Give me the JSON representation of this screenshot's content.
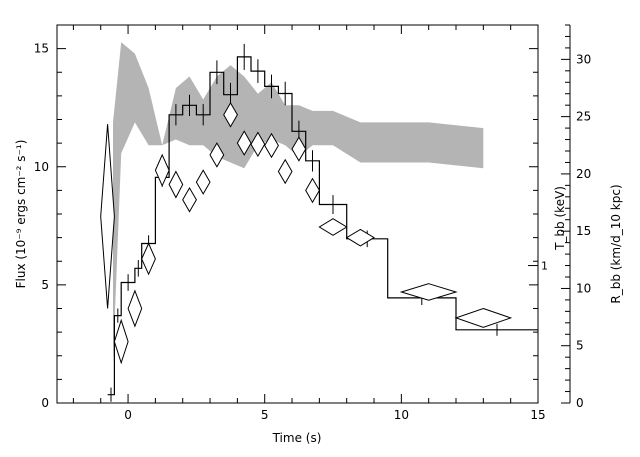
{
  "chart_data": {
    "type": "line",
    "xlabel": "Time (s)",
    "ylabel": "Flux (10⁻⁹ ergs cm⁻² s⁻¹)",
    "y2label_T": "T_bb (keV)",
    "y2label_R": "R_bb (km/d_10 kpc)",
    "y2_marker_label": "1",
    "xlim": [
      -2.6,
      15
    ],
    "ylim": [
      0,
      16
    ],
    "y2lim": [
      0,
      33
    ],
    "x_ticks": [
      0,
      5,
      10,
      15
    ],
    "x_tick_labels": [
      "0",
      "5",
      "10",
      "15"
    ],
    "y_ticks": [
      0,
      5,
      10,
      15
    ],
    "y_tick_labels": [
      "0",
      "5",
      "10",
      "15"
    ],
    "y2_ticks": [
      0,
      5,
      10,
      15,
      20,
      25,
      30
    ],
    "y2_tick_labels": [
      "0",
      "5",
      "10",
      "15",
      "20",
      "25",
      "30"
    ],
    "y2_marker_value": 12,
    "flux_histogram": {
      "edges": [
        -0.75,
        -0.5,
        -0.25,
        0.25,
        0.5,
        1.0,
        1.5,
        2.0,
        2.5,
        3.0,
        3.5,
        4.0,
        4.5,
        5.0,
        5.5,
        6.0,
        6.5,
        7.0,
        8.0,
        9.5,
        12.0,
        15.0
      ],
      "values": [
        0.35,
        3.7,
        5.1,
        5.7,
        6.75,
        9.55,
        12.2,
        12.6,
        12.2,
        14.0,
        13.05,
        14.65,
        14.05,
        13.4,
        13.1,
        11.5,
        10.25,
        8.4,
        6.95,
        4.45,
        3.1
      ],
      "errors": [
        0.3,
        0.3,
        0.35,
        0.35,
        0.35,
        0.4,
        0.45,
        0.45,
        0.45,
        0.5,
        0.5,
        0.55,
        0.5,
        0.5,
        0.5,
        0.45,
        0.45,
        0.4,
        0.35,
        0.3,
        0.25
      ]
    },
    "temperature_points": [
      {
        "t": -0.75,
        "kT": 7.9,
        "dt": 0.25,
        "dkT": 3.9
      },
      {
        "t": -0.25,
        "kT": 2.6,
        "dt": 0.25,
        "dkT": 0.9
      },
      {
        "t": 0.25,
        "kT": 4.0,
        "dt": 0.25,
        "dkT": 0.75
      },
      {
        "t": 0.75,
        "kT": 6.1,
        "dt": 0.25,
        "dkT": 0.65
      },
      {
        "t": 1.25,
        "kT": 9.85,
        "dt": 0.25,
        "dkT": 0.65
      },
      {
        "t": 1.75,
        "kT": 9.25,
        "dt": 0.25,
        "dkT": 0.55
      },
      {
        "t": 2.25,
        "kT": 8.6,
        "dt": 0.25,
        "dkT": 0.5
      },
      {
        "t": 2.75,
        "kT": 9.35,
        "dt": 0.25,
        "dkT": 0.5
      },
      {
        "t": 3.25,
        "kT": 10.5,
        "dt": 0.25,
        "dkT": 0.5
      },
      {
        "t": 3.75,
        "kT": 12.2,
        "dt": 0.25,
        "dkT": 0.5
      },
      {
        "t": 4.25,
        "kT": 11.0,
        "dt": 0.25,
        "dkT": 0.5
      },
      {
        "t": 4.75,
        "kT": 10.95,
        "dt": 0.25,
        "dkT": 0.5
      },
      {
        "t": 5.25,
        "kT": 10.9,
        "dt": 0.25,
        "dkT": 0.5
      },
      {
        "t": 5.75,
        "kT": 9.8,
        "dt": 0.25,
        "dkT": 0.5
      },
      {
        "t": 6.25,
        "kT": 10.75,
        "dt": 0.25,
        "dkT": 0.5
      },
      {
        "t": 6.75,
        "kT": 9.0,
        "dt": 0.25,
        "dkT": 0.5
      },
      {
        "t": 7.5,
        "kT": 7.45,
        "dt": 0.5,
        "dkT": 0.35
      },
      {
        "t": 8.5,
        "kT": 7.0,
        "dt": 0.5,
        "dkT": 0.35
      },
      {
        "t": 11.0,
        "kT": 4.7,
        "dt": 1.0,
        "dkT": 0.35
      },
      {
        "t": 13.0,
        "kT": 3.6,
        "dt": 1.0,
        "dkT": 0.4
      }
    ],
    "radius_band": {
      "t": [
        -0.55,
        -0.25,
        0.25,
        0.75,
        1.25,
        1.75,
        2.25,
        2.75,
        3.25,
        3.75,
        4.25,
        4.75,
        5.25,
        5.75,
        6.25,
        6.75,
        7.5,
        8.5,
        11.0,
        13.0
      ],
      "low": [
        3.5,
        21.8,
        24.5,
        22.5,
        22.5,
        23.0,
        22.5,
        22.5,
        21.5,
        21.0,
        20.5,
        22.5,
        23.0,
        22.5,
        21.5,
        22.5,
        22.5,
        21.0,
        21.0,
        20.5
      ],
      "high": [
        24.5,
        31.5,
        30.5,
        27.5,
        22.5,
        27.5,
        28.5,
        26.5,
        28.5,
        29.5,
        28.5,
        27.0,
        28.0,
        26.0,
        26.0,
        25.5,
        25.5,
        24.5,
        24.5,
        24.0
      ]
    }
  }
}
